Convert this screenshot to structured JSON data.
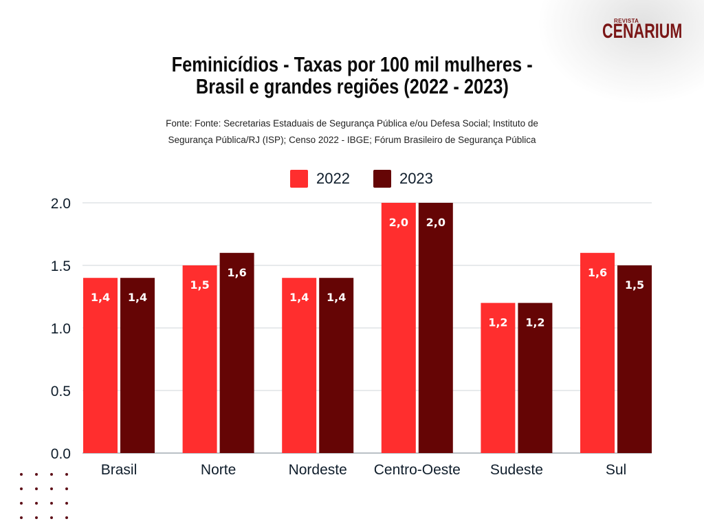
{
  "brand": {
    "small": "REVISTA",
    "name": "CENARIUM",
    "color": "#7a1616"
  },
  "title_lines": [
    "Feminicídios - Taxas por 100 mil mulheres -",
    "Brasil e grandes regiões (2022 - 2023)"
  ],
  "source_lines": [
    "Fonte: Fonte: Secretarias Estaduais de Segurança Pública e/ou Defesa Social; Instituto de",
    "Segurança Pública/RJ (ISP); Censo 2022 - IBGE; Fórum Brasileiro de Segurança Pública"
  ],
  "chart_data": {
    "type": "bar",
    "title": "Feminicídios - Taxas por 100 mil mulheres - Brasil e grandes regiões (2022 - 2023)",
    "xlabel": "",
    "ylabel": "",
    "categories": [
      "Brasil",
      "Norte",
      "Nordeste",
      "Centro-Oeste",
      "Sudeste",
      "Sul"
    ],
    "series": [
      {
        "name": "2022",
        "color": "#ff2e2e",
        "values": [
          1.4,
          1.5,
          1.4,
          2.0,
          1.2,
          1.6
        ],
        "labels": [
          "1,4",
          "1,5",
          "1,4",
          "2,0",
          "1,2",
          "1,6"
        ]
      },
      {
        "name": "2023",
        "color": "#650505",
        "values": [
          1.4,
          1.6,
          1.4,
          2.0,
          1.2,
          1.5
        ],
        "labels": [
          "1,4",
          "1,6",
          "1,4",
          "2,0",
          "1,2",
          "1,5"
        ]
      }
    ],
    "ylim": [
      0,
      2.0
    ],
    "yticks": [
      0,
      0.5,
      1.0,
      1.5,
      2.0
    ],
    "ytick_labels": [
      "0.0",
      "0.5",
      "1.0",
      "1.5",
      "2.0"
    ],
    "grid": true,
    "legend": "top-center"
  }
}
